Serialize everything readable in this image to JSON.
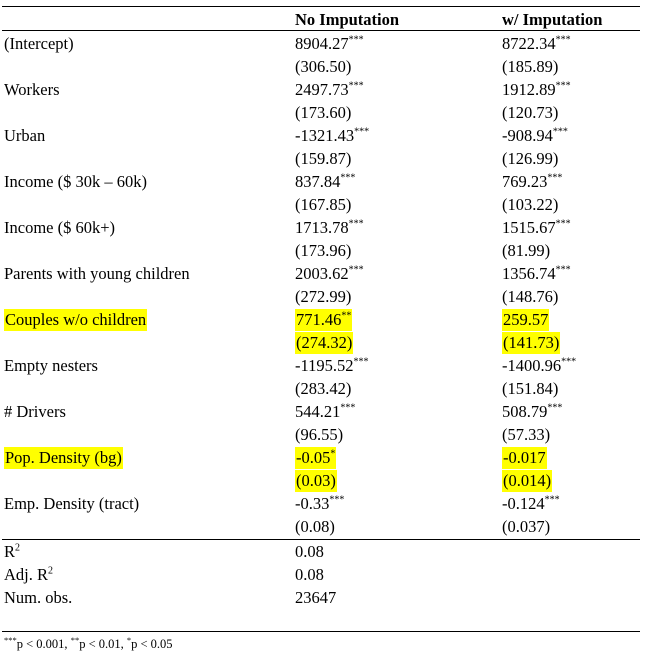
{
  "table": {
    "headers": [
      "No Imputation",
      "w/ Imputation"
    ],
    "rows": [
      {
        "label": "(Intercept)",
        "c1": {
          "coef": "8904.27",
          "stars": "***",
          "se": "(306.50)"
        },
        "c2": {
          "coef": "8722.34",
          "stars": "***",
          "se": "(185.89)"
        },
        "highlight": false
      },
      {
        "label": "Workers",
        "c1": {
          "coef": "2497.73",
          "stars": "***",
          "se": "(173.60)"
        },
        "c2": {
          "coef": "1912.89",
          "stars": "***",
          "se": "(120.73)"
        },
        "highlight": false
      },
      {
        "label": "Urban",
        "c1": {
          "coef": "-1321.43",
          "stars": "***",
          "se": "(159.87)"
        },
        "c2": {
          "coef": "-908.94",
          "stars": "***",
          "se": "(126.99)"
        },
        "highlight": false
      },
      {
        "label": "Income ($ 30k – 60k)",
        "c1": {
          "coef": "837.84",
          "stars": "***",
          "se": "(167.85)"
        },
        "c2": {
          "coef": "769.23",
          "stars": "***",
          "se": "(103.22)"
        },
        "highlight": false
      },
      {
        "label": "Income ($ 60k+)",
        "c1": {
          "coef": "1713.78",
          "stars": "***",
          "se": "(173.96)"
        },
        "c2": {
          "coef": "1515.67",
          "stars": "***",
          "se": "(81.99)"
        },
        "highlight": false
      },
      {
        "label": "Parents with young children",
        "c1": {
          "coef": "2003.62",
          "stars": "***",
          "se": "(272.99)"
        },
        "c2": {
          "coef": "1356.74",
          "stars": "***",
          "se": "(148.76)"
        },
        "highlight": false
      },
      {
        "label": "Couples w/o children",
        "c1": {
          "coef": "771.46",
          "stars": "**",
          "se": "(274.32)"
        },
        "c2": {
          "coef": "259.57",
          "stars": "",
          "se": "(141.73)"
        },
        "highlight": true
      },
      {
        "label": "Empty nesters",
        "c1": {
          "coef": "-1195.52",
          "stars": "***",
          "se": "(283.42)"
        },
        "c2": {
          "coef": "-1400.96",
          "stars": "***",
          "se": "(151.84)"
        },
        "highlight": false
      },
      {
        "label": "# Drivers",
        "c1": {
          "coef": "544.21",
          "stars": "***",
          "se": "(96.55)"
        },
        "c2": {
          "coef": "508.79",
          "stars": "***",
          "se": "(57.33)"
        },
        "highlight": false
      },
      {
        "label": "Pop. Density (bg)",
        "c1": {
          "coef": "-0.05",
          "stars": "*",
          "se": "(0.03)"
        },
        "c2": {
          "coef": "-0.017",
          "stars": "",
          "se": "(0.014)"
        },
        "highlight": true
      },
      {
        "label": "Emp. Density (tract)",
        "c1": {
          "coef": "-0.33",
          "stars": "***",
          "se": "(0.08)"
        },
        "c2": {
          "coef": "-0.124",
          "stars": "***",
          "se": "(0.037)"
        },
        "highlight": false
      }
    ],
    "stats": [
      {
        "label": "R",
        "sup": "2",
        "c1": "0.08"
      },
      {
        "label": "Adj. R",
        "sup": "2",
        "c1": "0.08"
      },
      {
        "label": "Num. obs.",
        "sup": "",
        "c1": "23647"
      }
    ]
  },
  "footnote": [
    {
      "stars": "***",
      "text": "p < 0.001, "
    },
    {
      "stars": "**",
      "text": "p < 0.01, "
    },
    {
      "stars": "*",
      "text": "p < 0.05"
    }
  ]
}
